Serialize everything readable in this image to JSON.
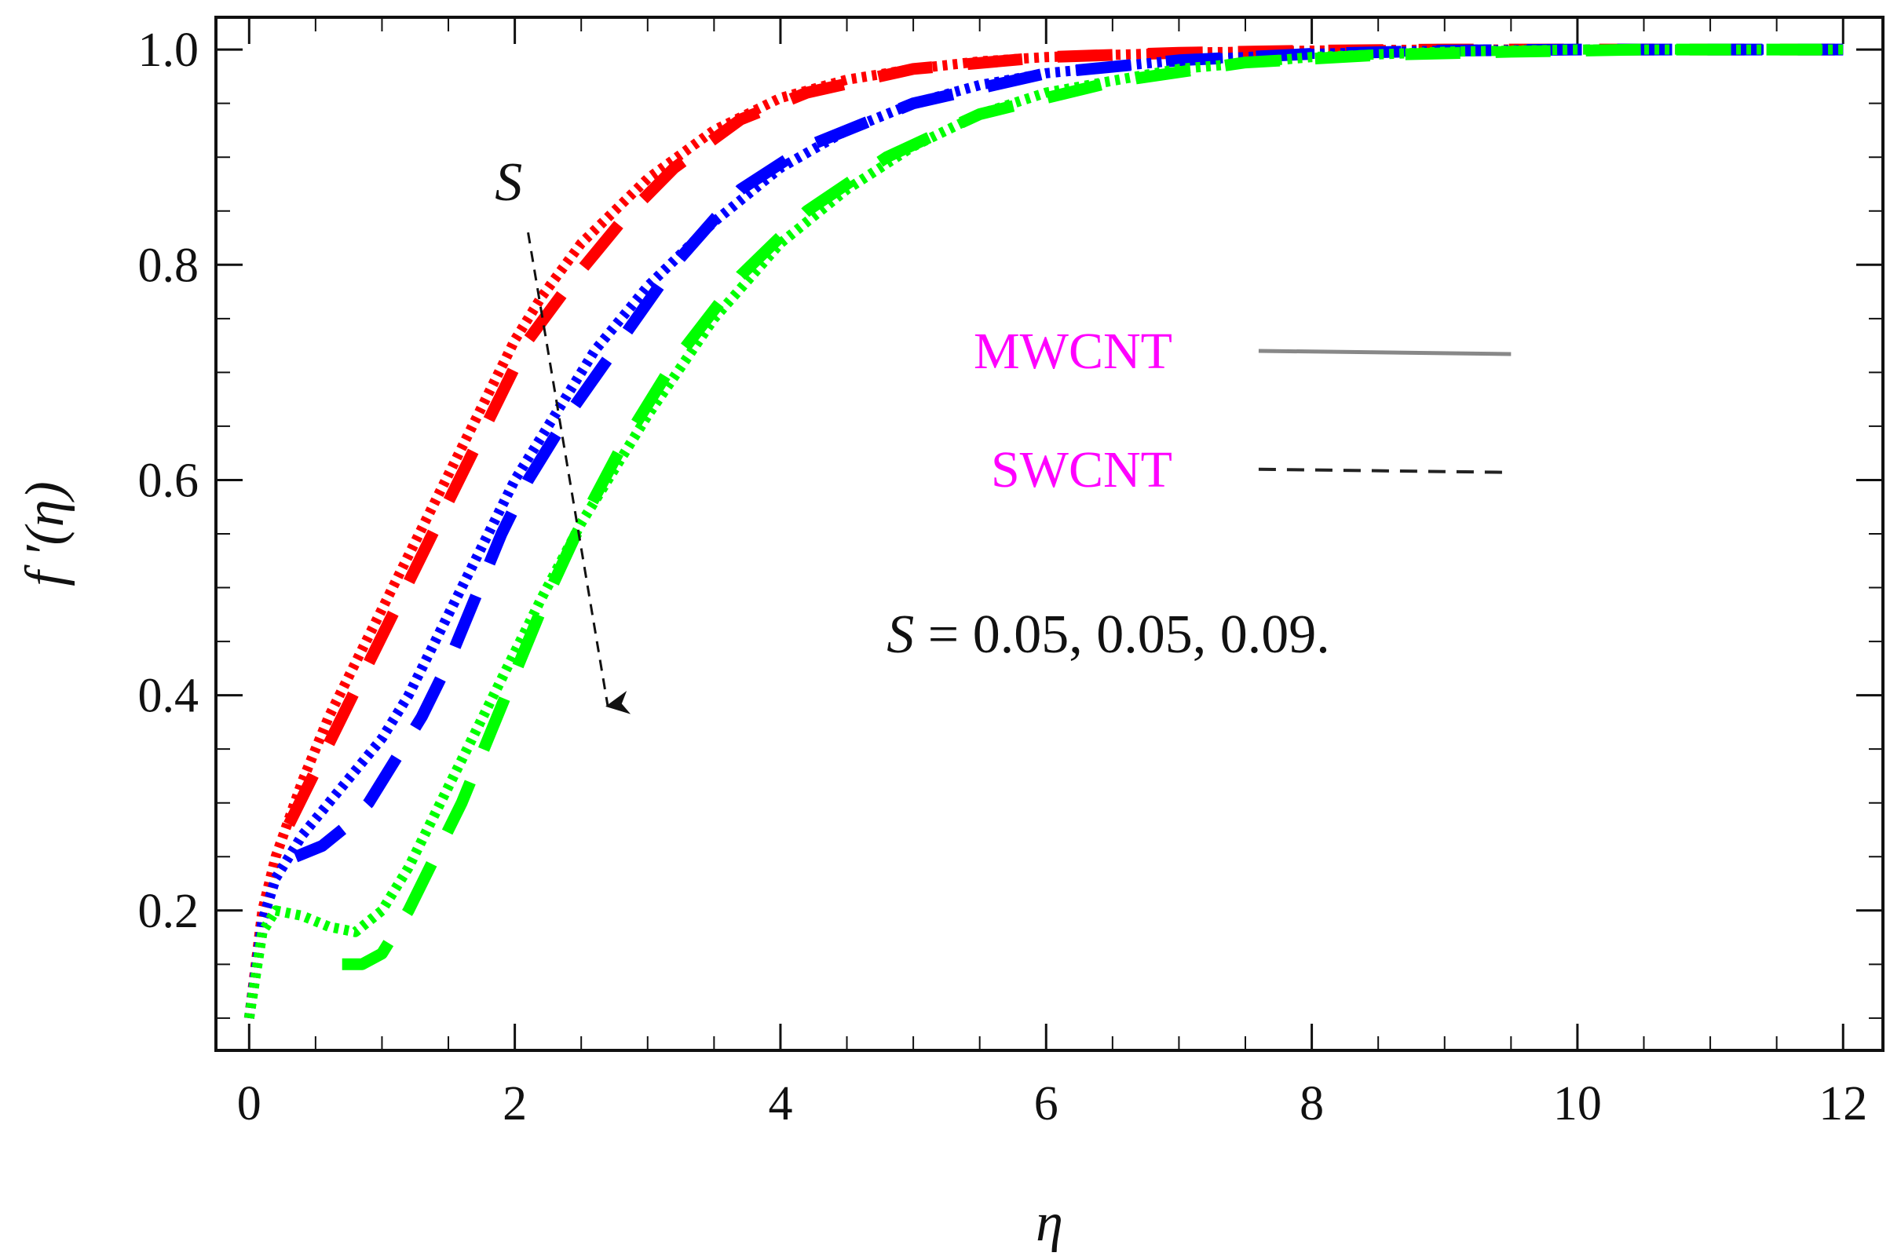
{
  "chart_data": {
    "type": "line",
    "title": "",
    "xlabel": "η",
    "ylabel": "f ′(η)",
    "xlim": [
      -0.25,
      12.3
    ],
    "ylim": [
      0.07,
      1.03
    ],
    "xticks": [
      0,
      2,
      4,
      6,
      8,
      10,
      12
    ],
    "xtick_labels": [
      "0",
      "2",
      "4",
      "6",
      "8",
      "10",
      "12"
    ],
    "yticks": [
      0.2,
      0.4,
      0.6,
      0.8,
      1.0
    ],
    "ytick_labels": [
      "0.2",
      "0.4",
      "0.6",
      "0.8",
      "1.0"
    ],
    "grid": false,
    "legend": {
      "placement": "right-center",
      "entries": [
        {
          "label": "MWCNT",
          "style": "solid",
          "color": "#888888",
          "text_color": "#ff00ff"
        },
        {
          "label": "SWCNT",
          "style": "dashed",
          "color": "#222222",
          "text_color": "#ff00ff"
        }
      ]
    },
    "annotations": {
      "arrow_label": "S",
      "parameter_symbol": "S",
      "parameter_values": " = 0.05, 0.05, 0.09.",
      "arrow_from": [
        2.1,
        0.83
      ],
      "arrow_to": [
        2.7,
        0.39
      ]
    },
    "series": [
      {
        "color": "#ff0000",
        "style": "dotted",
        "x": [
          0,
          0.1,
          0.2,
          0.4,
          0.6,
          0.8,
          1.0,
          1.2,
          1.4,
          1.6,
          1.8,
          2.0,
          2.2,
          2.5,
          3.0,
          3.5,
          4.0,
          4.5,
          5.0,
          5.5,
          6.0,
          7.0,
          8.0,
          9.0,
          10.0,
          11.0,
          12.0
        ],
        "y": [
          0.1,
          0.2,
          0.25,
          0.32,
          0.38,
          0.43,
          0.48,
          0.53,
          0.58,
          0.63,
          0.68,
          0.73,
          0.77,
          0.82,
          0.88,
          0.925,
          0.955,
          0.972,
          0.982,
          0.989,
          0.993,
          0.997,
          0.999,
          1.0,
          1.0,
          1.0,
          1.0
        ]
      },
      {
        "color": "#ff0000",
        "style": "dashed",
        "x": [
          0.3,
          0.5,
          0.7,
          0.9,
          1.1,
          1.3,
          1.5,
          1.7,
          1.9,
          2.1,
          2.4,
          2.8,
          3.2,
          3.7,
          4.2,
          5.0,
          6.0,
          7.0,
          8.0,
          9.0,
          10.0,
          11.0,
          12.0
        ],
        "y": [
          0.28,
          0.33,
          0.38,
          0.43,
          0.48,
          0.53,
          0.58,
          0.63,
          0.68,
          0.73,
          0.78,
          0.84,
          0.89,
          0.935,
          0.96,
          0.982,
          0.993,
          0.997,
          0.999,
          1.0,
          1.0,
          1.0,
          1.0
        ]
      },
      {
        "color": "#0000ff",
        "style": "dotted",
        "x": [
          0,
          0.1,
          0.2,
          0.4,
          0.6,
          0.8,
          1.0,
          1.2,
          1.4,
          1.6,
          1.8,
          2.0,
          2.3,
          2.6,
          3.0,
          3.5,
          4.0,
          4.5,
          5.0,
          5.5,
          6.0,
          7.0,
          8.0,
          9.0,
          10.0,
          11.0,
          12.0
        ],
        "y": [
          0.1,
          0.19,
          0.23,
          0.27,
          0.3,
          0.33,
          0.36,
          0.4,
          0.45,
          0.5,
          0.55,
          0.6,
          0.66,
          0.72,
          0.78,
          0.84,
          0.89,
          0.925,
          0.95,
          0.967,
          0.978,
          0.99,
          0.996,
          0.999,
          1.0,
          1.0,
          1.0
        ]
      },
      {
        "color": "#0000ff",
        "style": "dashed",
        "x": [
          0.35,
          0.55,
          0.75,
          0.9,
          1.1,
          1.3,
          1.5,
          1.7,
          1.9,
          2.1,
          2.4,
          2.8,
          3.2,
          3.7,
          4.2,
          5.0,
          6.0,
          7.0,
          8.0,
          9.0,
          10.0,
          11.0,
          12.0
        ],
        "y": [
          0.25,
          0.26,
          0.28,
          0.3,
          0.34,
          0.38,
          0.43,
          0.49,
          0.55,
          0.6,
          0.66,
          0.73,
          0.8,
          0.87,
          0.91,
          0.95,
          0.978,
          0.99,
          0.996,
          0.999,
          1.0,
          1.0,
          1.0
        ]
      },
      {
        "color": "#00ff00",
        "style": "dotted",
        "x": [
          0,
          0.1,
          0.2,
          0.4,
          0.6,
          0.8,
          1.0,
          1.2,
          1.4,
          1.6,
          1.8,
          2.0,
          2.2,
          2.5,
          3.0,
          3.5,
          4.0,
          4.5,
          5.0,
          5.5,
          6.0,
          7.0,
          8.0,
          9.0,
          10.0,
          11.0,
          12.0
        ],
        "y": [
          0.1,
          0.18,
          0.2,
          0.195,
          0.185,
          0.18,
          0.2,
          0.24,
          0.29,
          0.34,
          0.39,
          0.44,
          0.49,
          0.56,
          0.66,
          0.75,
          0.82,
          0.87,
          0.91,
          0.94,
          0.96,
          0.982,
          0.993,
          0.998,
          1.0,
          1.0,
          1.0
        ]
      },
      {
        "color": "#00ff00",
        "style": "dashed",
        "x": [
          0.7,
          0.85,
          1.0,
          1.2,
          1.4,
          1.6,
          1.8,
          2.0,
          2.2,
          2.5,
          2.8,
          3.2,
          3.7,
          4.2,
          4.8,
          5.5,
          6.5,
          7.5,
          8.5,
          9.5,
          10.5,
          11.5,
          12.0
        ],
        "y": [
          0.15,
          0.15,
          0.16,
          0.2,
          0.25,
          0.3,
          0.36,
          0.42,
          0.48,
          0.56,
          0.63,
          0.71,
          0.79,
          0.85,
          0.9,
          0.94,
          0.97,
          0.988,
          0.995,
          0.998,
          1.0,
          1.0,
          1.0
        ]
      }
    ]
  }
}
